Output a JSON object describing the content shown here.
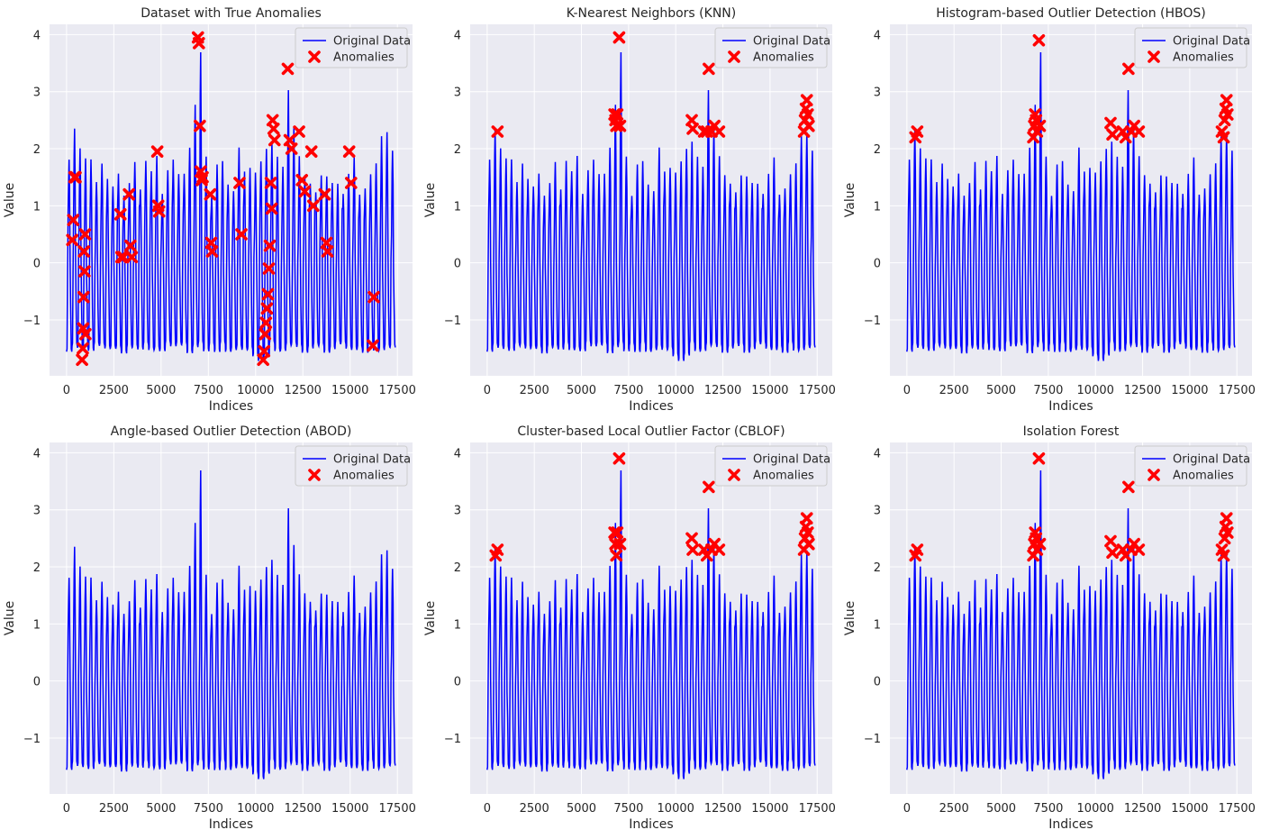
{
  "figure": {
    "series_names": {
      "line": "Original Data",
      "anomalies": "Anomalies"
    },
    "colors": {
      "line": "#0000ff",
      "anomaly": "#ff0000",
      "panel_bg": "#eaeaf2",
      "grid": "#ffffff"
    }
  },
  "chart_data": [
    {
      "type": "line",
      "title": "Dataset with True Anomalies",
      "xlabel": "Indices",
      "ylabel": "Value",
      "xlim": [
        -900,
        18300
      ],
      "ylim": [
        -1.98,
        4.18
      ],
      "xticks": [
        0,
        2500,
        5000,
        7500,
        10000,
        12500,
        15000,
        17500
      ],
      "yticks": [
        -1,
        0,
        1,
        2,
        3,
        4
      ],
      "grid": true,
      "legend": "top-right",
      "series": [
        {
          "name": "Original Data",
          "kind": "line",
          "x_range": [
            0,
            17400
          ]
        },
        {
          "name": "Anomalies",
          "kind": "scatter",
          "x": [
            300,
            350,
            420,
            480,
            820,
            860,
            880,
            900,
            920,
            950,
            980,
            1000,
            2850,
            2900,
            3000,
            3300,
            3380,
            3450,
            4800,
            4850,
            4900,
            6950,
            7000,
            7050,
            7100,
            7150,
            7200,
            7600,
            7650,
            7700,
            9150,
            9250,
            10400,
            10450,
            10500,
            10550,
            10600,
            10650,
            10700,
            10750,
            10800,
            10850,
            10900,
            10950,
            11000,
            11700,
            11800,
            11900,
            12300,
            12450,
            12600,
            12950,
            13050,
            13650,
            13750,
            13800,
            14950,
            15050,
            16250,
            16200
          ],
          "y": [
            0.4,
            0.75,
            1.5,
            1.5,
            -1.7,
            -1.5,
            -1.15,
            -0.6,
            0.2,
            -0.15,
            0.5,
            -1.25,
            0.85,
            0.1,
            0.1,
            1.2,
            0.3,
            0.1,
            1.95,
            1.0,
            0.9,
            3.95,
            3.85,
            2.4,
            1.6,
            1.45,
            1.5,
            1.2,
            0.35,
            0.2,
            1.4,
            0.5,
            -1.7,
            -1.55,
            -1.25,
            -1.05,
            -0.8,
            -0.55,
            -0.1,
            0.3,
            1.4,
            0.95,
            2.5,
            2.35,
            2.15,
            3.4,
            2.15,
            2.0,
            2.3,
            1.45,
            1.25,
            1.95,
            1.0,
            1.2,
            0.35,
            0.2,
            1.95,
            1.4,
            -0.6,
            -1.45
          ]
        }
      ]
    },
    {
      "type": "line",
      "title": "K-Nearest Neighbors (KNN)",
      "xlabel": "Indices",
      "ylabel": "Value",
      "xlim": [
        -900,
        18300
      ],
      "ylim": [
        -1.98,
        4.18
      ],
      "xticks": [
        0,
        2500,
        5000,
        7500,
        10000,
        12500,
        15000,
        17500
      ],
      "yticks": [
        -1,
        0,
        1,
        2,
        3,
        4
      ],
      "grid": true,
      "legend": "top-right",
      "series": [
        {
          "name": "Original Data",
          "kind": "line",
          "x_range": [
            0,
            17400
          ]
        },
        {
          "name": "Anomalies",
          "kind": "scatter",
          "x": [
            550,
            6750,
            6800,
            6850,
            6900,
            7000,
            7050,
            10850,
            10900,
            11500,
            11650,
            11750,
            11900,
            12050,
            12300,
            16800,
            16850,
            16900,
            16950,
            17000,
            17050
          ],
          "y": [
            2.3,
            2.6,
            2.5,
            2.4,
            2.6,
            3.95,
            2.4,
            2.5,
            2.35,
            2.3,
            2.3,
            3.4,
            2.3,
            2.4,
            2.3,
            2.3,
            2.5,
            2.7,
            2.85,
            2.6,
            2.4
          ]
        }
      ]
    },
    {
      "type": "line",
      "title": "Histogram-based Outlier Detection (HBOS)",
      "xlabel": "Indices",
      "ylabel": "Value",
      "xlim": [
        -900,
        18300
      ],
      "ylim": [
        -1.98,
        4.18
      ],
      "xticks": [
        0,
        2500,
        5000,
        7500,
        10000,
        12500,
        15000,
        17500
      ],
      "yticks": [
        -1,
        0,
        1,
        2,
        3,
        4
      ],
      "grid": true,
      "legend": "top-right",
      "series": [
        {
          "name": "Original Data",
          "kind": "line",
          "x_range": [
            0,
            17400
          ]
        },
        {
          "name": "Anomalies",
          "kind": "scatter",
          "x": [
            450,
            550,
            6700,
            6750,
            6800,
            6850,
            6900,
            7000,
            7050,
            10800,
            10900,
            11450,
            11600,
            11750,
            11900,
            12050,
            12300,
            16700,
            16800,
            16850,
            16900,
            16950,
            17000
          ],
          "y": [
            2.2,
            2.3,
            2.2,
            2.4,
            2.6,
            2.5,
            2.3,
            3.9,
            2.4,
            2.45,
            2.25,
            2.3,
            2.2,
            3.4,
            2.3,
            2.4,
            2.3,
            2.3,
            2.2,
            2.5,
            2.7,
            2.85,
            2.6
          ]
        }
      ]
    },
    {
      "type": "line",
      "title": "Angle-based Outlier Detection (ABOD)",
      "xlabel": "Indices",
      "ylabel": "Value",
      "xlim": [
        -900,
        18300
      ],
      "ylim": [
        -1.98,
        4.18
      ],
      "xticks": [
        0,
        2500,
        5000,
        7500,
        10000,
        12500,
        15000,
        17500
      ],
      "yticks": [
        -1,
        0,
        1,
        2,
        3,
        4
      ],
      "grid": true,
      "legend": "top-right",
      "series": [
        {
          "name": "Original Data",
          "kind": "line",
          "x_range": [
            0,
            17400
          ]
        },
        {
          "name": "Anomalies",
          "kind": "scatter",
          "x": [],
          "y": []
        }
      ]
    },
    {
      "type": "line",
      "title": "Cluster-based Local Outlier Factor (CBLOF)",
      "xlabel": "Indices",
      "ylabel": "Value",
      "xlim": [
        -900,
        18300
      ],
      "ylim": [
        -1.98,
        4.18
      ],
      "xticks": [
        0,
        2500,
        5000,
        7500,
        10000,
        12500,
        15000,
        17500
      ],
      "yticks": [
        -1,
        0,
        1,
        2,
        3,
        4
      ],
      "grid": true,
      "legend": "top-right",
      "series": [
        {
          "name": "Original Data",
          "kind": "line",
          "x_range": [
            0,
            17400
          ]
        },
        {
          "name": "Anomalies",
          "kind": "scatter",
          "x": [
            450,
            550,
            6750,
            6800,
            6850,
            6900,
            7000,
            7050,
            10850,
            10900,
            11500,
            11650,
            11750,
            11900,
            12050,
            12300,
            16800,
            16850,
            16900,
            16950,
            17000,
            17050
          ],
          "y": [
            2.2,
            2.3,
            2.6,
            2.4,
            2.2,
            2.6,
            3.9,
            2.4,
            2.5,
            2.3,
            2.3,
            2.2,
            3.4,
            2.3,
            2.4,
            2.3,
            2.3,
            2.5,
            2.7,
            2.85,
            2.6,
            2.4
          ]
        }
      ]
    },
    {
      "type": "line",
      "title": "Isolation Forest",
      "xlabel": "Indices",
      "ylabel": "Value",
      "xlim": [
        -900,
        18300
      ],
      "ylim": [
        -1.98,
        4.18
      ],
      "xticks": [
        0,
        2500,
        5000,
        7500,
        10000,
        12500,
        15000,
        17500
      ],
      "yticks": [
        -1,
        0,
        1,
        2,
        3,
        4
      ],
      "grid": true,
      "legend": "top-right",
      "series": [
        {
          "name": "Original Data",
          "kind": "line",
          "x_range": [
            0,
            17400
          ]
        },
        {
          "name": "Anomalies",
          "kind": "scatter",
          "x": [
            450,
            550,
            6700,
            6750,
            6800,
            6850,
            6900,
            7000,
            7050,
            10800,
            10900,
            11450,
            11600,
            11750,
            11900,
            12050,
            12300,
            16700,
            16800,
            16850,
            16900,
            16950,
            17000
          ],
          "y": [
            2.2,
            2.3,
            2.2,
            2.4,
            2.6,
            2.5,
            2.3,
            3.9,
            2.4,
            2.45,
            2.25,
            2.3,
            2.2,
            3.4,
            2.3,
            2.4,
            2.3,
            2.3,
            2.2,
            2.5,
            2.7,
            2.85,
            2.6
          ]
        }
      ]
    }
  ]
}
